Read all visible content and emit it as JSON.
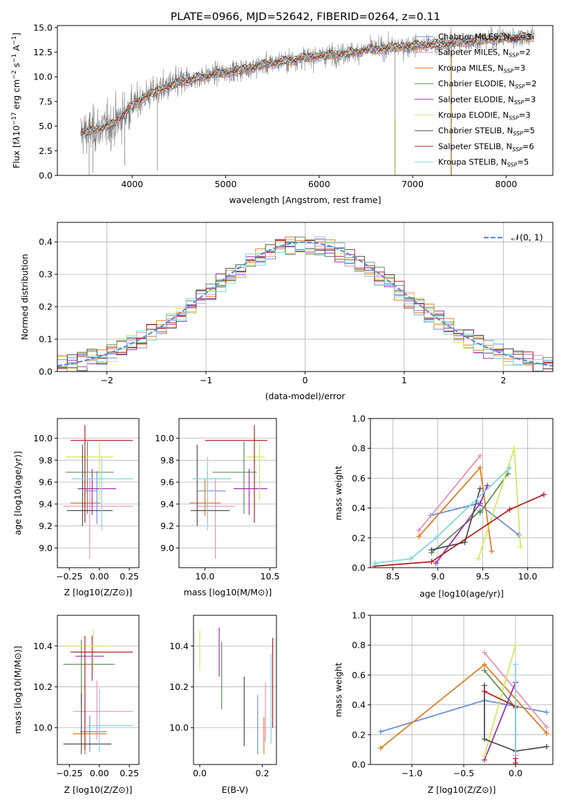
{
  "title": "PLATE=0966, MJD=52642, FIBERID=0264, z=0.11",
  "colors": {
    "chabrier_miles": "#6a8cd6",
    "salpeter_miles": "#e88fb6",
    "kroupa_miles": "#e07b1a",
    "chabrier_elodie": "#5b8a5b",
    "salpeter_elodie": "#9a2fae",
    "kroupa_elodie": "#d4e85a",
    "chabrier_stelib": "#4d4d4d",
    "salpeter_stelib": "#b21f1f",
    "kroupa_stelib": "#7fd6e0",
    "data": "#7f7f7f",
    "normal": "#5b8ed6",
    "grid": "#b0b0b0"
  },
  "chart_data": [
    {
      "id": "spectrum",
      "type": "line",
      "xlabel": "wavelength [Angstrom, rest frame]",
      "ylabel_parts": [
        "Flux [f",
        "λ",
        "10",
        "−17",
        " erg cm",
        "−2",
        " s",
        "−1",
        " A",
        "−1",
        "]"
      ],
      "xlim": [
        3200,
        8500
      ],
      "ylim": [
        0,
        15.2
      ],
      "xticks": [
        4000,
        5000,
        6000,
        7000,
        8000
      ],
      "yticks": [
        0.0,
        2.5,
        5.0,
        7.5,
        10.0,
        12.5,
        15.0
      ],
      "ytick_labels": [
        "0.0",
        "2.5",
        "5.0",
        "7.5",
        "10.0",
        "12.5",
        "15.0"
      ],
      "legend_position": "right",
      "legend": [
        {
          "label": "Chabrier MILES, N",
          "nssp": "3",
          "key": "chabrier_miles"
        },
        {
          "label": "Salpeter MILES, N",
          "nssp": "2",
          "key": "salpeter_miles"
        },
        {
          "label": "Kroupa MILES, N",
          "nssp": "3",
          "key": "kroupa_miles"
        },
        {
          "label": "Chabrier ELODIE, N",
          "nssp": "2",
          "key": "chabrier_elodie"
        },
        {
          "label": "Salpeter ELODIE, N",
          "nssp": "3",
          "key": "salpeter_elodie"
        },
        {
          "label": "Kroupa ELODIE, N",
          "nssp": "3",
          "key": "kroupa_elodie"
        },
        {
          "label": "Chabrier STELIB, N",
          "nssp": "5",
          "key": "chabrier_stelib"
        },
        {
          "label": "Salpeter STELIB, N",
          "nssp": "6",
          "key": "salpeter_stelib"
        },
        {
          "label": "Kroupa STELIB, N",
          "nssp": "5",
          "key": "kroupa_stelib"
        }
      ],
      "legend_sub": "SSP",
      "continuum": [
        [
          3450,
          4.3
        ],
        [
          3600,
          4.6
        ],
        [
          3800,
          5.2
        ],
        [
          3950,
          6.6
        ],
        [
          4100,
          7.8
        ],
        [
          4300,
          8.7
        ],
        [
          4500,
          9.4
        ],
        [
          4700,
          9.9
        ],
        [
          4900,
          10.3
        ],
        [
          5100,
          10.6
        ],
        [
          5300,
          11.0
        ],
        [
          5500,
          11.4
        ],
        [
          5700,
          11.7
        ],
        [
          5900,
          12.0
        ],
        [
          6100,
          12.2
        ],
        [
          6300,
          12.4
        ],
        [
          6500,
          12.7
        ],
        [
          6700,
          12.9
        ],
        [
          6900,
          13.1
        ],
        [
          7100,
          13.2
        ],
        [
          7300,
          13.3
        ],
        [
          7500,
          13.5
        ],
        [
          7700,
          13.7
        ],
        [
          7900,
          13.9
        ],
        [
          8100,
          14.0
        ],
        [
          8300,
          14.1
        ]
      ]
    },
    {
      "id": "residuals",
      "type": "histogram",
      "xlabel": "(data-model)/error",
      "ylabel": "Normed distribution",
      "xlim": [
        -2.5,
        2.5
      ],
      "ylim": [
        0,
        0.46
      ],
      "xticks": [
        -2,
        -1,
        0,
        1,
        2
      ],
      "xtick_labels": [
        "−2",
        "−1",
        "0",
        "1",
        "2"
      ],
      "yticks": [
        0.0,
        0.1,
        0.2,
        0.3,
        0.4
      ],
      "ytick_labels": [
        "0.0",
        "0.1",
        "0.2",
        "0.3",
        "0.4"
      ],
      "bin_width": 0.1,
      "legend_label": "𝒩(0, 1)",
      "legend_position": "upper right"
    },
    {
      "id": "age_z",
      "type": "scatter",
      "xlabel": "Z [log10(Z/Z⊙)]",
      "ylabel": "age  [log10(age/yr)]",
      "xlim": [
        -0.35,
        0.33
      ],
      "ylim": [
        8.82,
        10.18
      ],
      "xticks": [
        -0.25,
        0.0,
        0.25
      ],
      "xtick_labels": [
        "−0.25",
        "0.00",
        "0.25"
      ],
      "yticks": [
        9.0,
        9.2,
        9.4,
        9.6,
        9.8,
        10.0
      ],
      "ytick_labels": [
        "9.0",
        "9.2",
        "9.4",
        "9.6",
        "9.8",
        "10.0"
      ],
      "points": [
        {
          "key": "chabrier_miles",
          "x": -0.02,
          "y": 9.52,
          "xerr": [
            0.1,
            0.0
          ],
          "yerr": [
            0.3,
            0.18
          ]
        },
        {
          "key": "salpeter_miles",
          "x": -0.08,
          "y": 9.38,
          "xerr": [
            0.22,
            0.36
          ],
          "yerr": [
            0.48,
            0.25
          ]
        },
        {
          "key": "kroupa_miles",
          "x": -0.12,
          "y": 9.41,
          "xerr": [
            0.12,
            0.13
          ],
          "yerr": [
            0.12,
            0.22
          ]
        },
        {
          "key": "chabrier_elodie",
          "x": -0.1,
          "y": 9.69,
          "xerr": [
            0.18,
            0.22
          ],
          "yerr": [
            0.38,
            0.28
          ]
        },
        {
          "key": "salpeter_elodie",
          "x": -0.06,
          "y": 9.54,
          "xerr": [
            0.12,
            0.2
          ],
          "yerr": [
            0.24,
            0.18
          ]
        },
        {
          "key": "kroupa_elodie",
          "x": 0.0,
          "y": 9.83,
          "xerr": [
            0.28,
            0.12
          ],
          "yerr": [
            0.4,
            0.13
          ]
        },
        {
          "key": "chabrier_stelib",
          "x": -0.14,
          "y": 9.34,
          "xerr": [
            0.13,
            0.25
          ],
          "yerr": [
            0.14,
            0.6
          ]
        },
        {
          "key": "salpeter_stelib",
          "x": -0.12,
          "y": 9.98,
          "xerr": [
            0.12,
            0.4
          ],
          "yerr": [
            0.75,
            0.14
          ]
        },
        {
          "key": "kroupa_stelib",
          "x": 0.02,
          "y": 9.63,
          "xerr": [
            0.25,
            0.26
          ],
          "yerr": [
            0.47,
            0.2
          ]
        }
      ]
    },
    {
      "id": "age_mass",
      "type": "scatter",
      "xlabel": "mass [log10(M/M⊙)]",
      "ylabel": "",
      "xlim": [
        9.8,
        10.55
      ],
      "ylim": [
        8.82,
        10.18
      ],
      "xticks": [
        10.0,
        10.5
      ],
      "xtick_labels": [
        "10.0",
        "10.5"
      ],
      "yticks": [
        9.0,
        9.2,
        9.4,
        9.6,
        9.8,
        10.0
      ],
      "ytick_labels": [
        "9.0",
        "9.2",
        "9.4",
        "9.6",
        "9.8",
        "10.0"
      ],
      "points": [
        {
          "key": "chabrier_miles",
          "x": 10.02,
          "y": 9.52,
          "xerr": [
            0.08,
            0.14
          ],
          "yerr": [
            0.3,
            0.18
          ]
        },
        {
          "key": "salpeter_miles",
          "x": 10.08,
          "y": 9.38,
          "xerr": [
            0.14,
            0.15
          ],
          "yerr": [
            0.48,
            0.25
          ]
        },
        {
          "key": "kroupa_miles",
          "x": 10.0,
          "y": 9.41,
          "xerr": [
            0.12,
            0.12
          ],
          "yerr": [
            0.12,
            0.22
          ]
        },
        {
          "key": "chabrier_elodie",
          "x": 10.3,
          "y": 9.69,
          "xerr": [
            0.24,
            0.1
          ],
          "yerr": [
            0.38,
            0.28
          ]
        },
        {
          "key": "salpeter_elodie",
          "x": 10.34,
          "y": 9.54,
          "xerr": [
            0.12,
            0.14
          ],
          "yerr": [
            0.24,
            0.18
          ]
        },
        {
          "key": "kroupa_elodie",
          "x": 10.42,
          "y": 9.83,
          "xerr": [
            0.1,
            0.04
          ],
          "yerr": [
            0.4,
            0.13
          ]
        },
        {
          "key": "chabrier_stelib",
          "x": 9.94,
          "y": 9.34,
          "xerr": [
            0.05,
            0.25
          ],
          "yerr": [
            0.14,
            0.6
          ]
        },
        {
          "key": "salpeter_stelib",
          "x": 10.38,
          "y": 9.98,
          "xerr": [
            0.38,
            0.1
          ],
          "yerr": [
            0.75,
            0.14
          ]
        },
        {
          "key": "kroupa_stelib",
          "x": 10.02,
          "y": 9.63,
          "xerr": [
            0.12,
            0.18
          ],
          "yerr": [
            0.47,
            0.2
          ]
        }
      ]
    },
    {
      "id": "weight_age",
      "type": "line",
      "xlabel": "age  [log10(age/yr)]",
      "ylabel": "mass weight",
      "xlim": [
        8.25,
        10.28
      ],
      "ylim": [
        0,
        1.0
      ],
      "xticks": [
        8.5,
        9.0,
        9.5,
        10.0
      ],
      "xtick_labels": [
        "8.5",
        "9.0",
        "9.5",
        "10.0"
      ],
      "yticks": [
        0.0,
        0.2,
        0.4,
        0.6,
        0.8,
        1.0
      ],
      "ytick_labels": [
        "0.0",
        "0.2",
        "0.4",
        "0.6",
        "0.8",
        "1.0"
      ],
      "series": [
        {
          "key": "chabrier_miles",
          "x": [
            8.92,
            9.45,
            9.9
          ],
          "y": [
            0.35,
            0.43,
            0.22
          ]
        },
        {
          "key": "salpeter_miles",
          "x": [
            8.79,
            9.47
          ],
          "y": [
            0.25,
            0.75
          ]
        },
        {
          "key": "kroupa_miles",
          "x": [
            8.79,
            9.47,
            9.6
          ],
          "y": [
            0.21,
            0.67,
            0.11
          ]
        },
        {
          "key": "chabrier_elodie",
          "x": [
            8.93,
            9.47
          ],
          "y": [
            0.1,
            0.38
          ]
        },
        {
          "key": "chabrier_elodie",
          "x": [
            9.47,
            9.78
          ],
          "y": [
            0.37,
            0.63
          ]
        },
        {
          "key": "salpeter_elodie",
          "x": [
            8.98,
            9.47,
            9.55
          ],
          "y": [
            0.03,
            0.43,
            0.55
          ]
        },
        {
          "key": "kroupa_elodie",
          "x": [
            9.45,
            9.85,
            9.92
          ],
          "y": [
            0.06,
            0.8,
            0.14
          ]
        },
        {
          "key": "chabrier_stelib",
          "x": [
            8.93,
            9.3,
            9.47
          ],
          "y": [
            0.12,
            0.17,
            0.53
          ]
        },
        {
          "key": "salpeter_stelib",
          "x": [
            8.3,
            8.93,
            9.8,
            10.18
          ],
          "y": [
            0.01,
            0.04,
            0.39,
            0.49
          ]
        },
        {
          "key": "kroupa_stelib",
          "x": [
            8.3,
            8.7,
            8.98,
            9.8
          ],
          "y": [
            0.03,
            0.06,
            0.2,
            0.67
          ]
        }
      ]
    },
    {
      "id": "mass_z",
      "type": "scatter",
      "xlabel": "Z [log10(Z/Z⊙)]",
      "ylabel": "mass [log10(M/M⊙)]",
      "xlim": [
        -0.35,
        0.33
      ],
      "ylim": [
        9.82,
        10.55
      ],
      "xticks": [
        -0.25,
        0.0,
        0.25
      ],
      "xtick_labels": [
        "−0.25",
        "0.00",
        "0.25"
      ],
      "yticks": [
        10.0,
        10.2,
        10.4
      ],
      "ytick_labels": [
        "10.0",
        "10.2",
        "10.4"
      ],
      "points": [
        {
          "key": "chabrier_miles",
          "x": -0.08,
          "y": 9.98,
          "xerr": [
            0.08,
            0.14
          ],
          "yerr": [
            0.1,
            0.08
          ]
        },
        {
          "key": "salpeter_miles",
          "x": -0.02,
          "y": 10.08,
          "xerr": [
            0.2,
            0.3
          ],
          "yerr": [
            0.14,
            0.15
          ]
        },
        {
          "key": "kroupa_miles",
          "x": -0.12,
          "y": 9.97,
          "xerr": [
            0.1,
            0.18
          ],
          "yerr": [
            0.1,
            0.15
          ]
        },
        {
          "key": "chabrier_elodie",
          "x": -0.15,
          "y": 10.31,
          "xerr": [
            0.15,
            0.28
          ],
          "yerr": [
            0.2,
            0.12
          ]
        },
        {
          "key": "salpeter_elodie",
          "x": -0.06,
          "y": 10.35,
          "xerr": [
            0.14,
            0.1
          ],
          "yerr": [
            0.12,
            0.1
          ]
        },
        {
          "key": "kroupa_elodie",
          "x": -0.05,
          "y": 10.4,
          "xerr": [
            0.24,
            0.15
          ],
          "yerr": [
            0.14,
            0.08
          ]
        },
        {
          "key": "chabrier_stelib",
          "x": -0.15,
          "y": 9.92,
          "xerr": [
            0.15,
            0.25
          ],
          "yerr": [
            0.05,
            0.25
          ]
        },
        {
          "key": "salpeter_stelib",
          "x": -0.12,
          "y": 10.37,
          "xerr": [
            0.12,
            0.4
          ],
          "yerr": [
            0.48,
            0.08
          ]
        },
        {
          "key": "kroupa_stelib",
          "x": 0.0,
          "y": 10.01,
          "xerr": [
            0.1,
            0.28
          ],
          "yerr": [
            0.13,
            0.18
          ]
        }
      ]
    },
    {
      "id": "mass_ebv",
      "type": "scatter",
      "xlabel": "E(B-V)",
      "ylabel": "",
      "xlim": [
        -0.02,
        0.245
      ],
      "ylim": [
        9.82,
        10.55
      ],
      "xticks": [
        0.0,
        0.2
      ],
      "xtick_labels": [
        "0.0",
        "0.2"
      ],
      "yticks": [
        10.0,
        10.2,
        10.4
      ],
      "ytick_labels": [
        "10.0",
        "10.2",
        "10.4"
      ],
      "points": [
        {
          "key": "chabrier_miles",
          "x": 0.185,
          "y": 10.02,
          "yerr": [
            0.15,
            0.14
          ]
        },
        {
          "key": "salpeter_miles",
          "x": 0.21,
          "y": 10.08,
          "yerr": [
            0.15,
            0.14
          ]
        },
        {
          "key": "kroupa_miles",
          "x": 0.205,
          "y": 9.97,
          "yerr": [
            0.1,
            0.08
          ]
        },
        {
          "key": "chabrier_elodie",
          "x": 0.07,
          "y": 10.31,
          "yerr": [
            0.22,
            0.11
          ]
        },
        {
          "key": "salpeter_elodie",
          "x": 0.062,
          "y": 10.36,
          "yerr": [
            0.11,
            0.13
          ]
        },
        {
          "key": "kroupa_elodie",
          "x": 0.0,
          "y": 10.4,
          "yerr": [
            0.12,
            0.08
          ]
        },
        {
          "key": "chabrier_stelib",
          "x": 0.142,
          "y": 10.05,
          "yerr": [
            0.14,
            0.2
          ]
        },
        {
          "key": "salpeter_stelib",
          "x": 0.233,
          "y": 10.2,
          "yerr": [
            0.2,
            0.24
          ]
        },
        {
          "key": "kroupa_stelib",
          "x": 0.228,
          "y": 10.07,
          "yerr": [
            0.15,
            0.29
          ]
        }
      ]
    },
    {
      "id": "weight_z",
      "type": "line",
      "xlabel": "Z [log10(Z/Z⊙)]",
      "ylabel": "mass weight",
      "xlim": [
        -1.4,
        0.36
      ],
      "ylim": [
        0,
        1.0
      ],
      "xticks": [
        -1.0,
        -0.5,
        0.0
      ],
      "xtick_labels": [
        "−1.0",
        "−0.5",
        "0.0"
      ],
      "yticks": [
        0.0,
        0.2,
        0.4,
        0.6,
        0.8,
        1.0
      ],
      "ytick_labels": [
        "0.0",
        "0.2",
        "0.4",
        "0.6",
        "0.8",
        "1.0"
      ],
      "series": [
        {
          "key": "chabrier_miles",
          "x": [
            -1.3,
            -0.3,
            0.3
          ],
          "y": [
            0.22,
            0.43,
            0.35
          ]
        },
        {
          "key": "salpeter_miles",
          "x": [
            -0.3,
            0.3
          ],
          "y": [
            0.75,
            0.25
          ]
        },
        {
          "key": "kroupa_miles",
          "x": [
            -1.3,
            -0.3,
            0.3
          ],
          "y": [
            0.11,
            0.67,
            0.21
          ]
        },
        {
          "key": "chabrier_elodie",
          "x": [
            -0.3,
            0.0
          ],
          "y": [
            0.63,
            0.38
          ]
        },
        {
          "key": "salpeter_elodie",
          "x": [
            -0.3,
            0.0
          ],
          "y": [
            0.03,
            0.55
          ]
        },
        {
          "key": "kroupa_elodie",
          "x": [
            -0.3,
            0.0
          ],
          "y": [
            0.06,
            0.8
          ]
        },
        {
          "key": "chabrier_stelib",
          "x": [
            -0.3,
            -0.3,
            0.0,
            0.3
          ],
          "y": [
            0.53,
            0.17,
            0.09,
            0.12
          ]
        },
        {
          "key": "salpeter_stelib",
          "x": [
            -0.3,
            0.0,
            0.0,
            0.0
          ],
          "y": [
            0.49,
            0.39,
            0.04,
            0.01
          ]
        },
        {
          "key": "kroupa_stelib",
          "x": [
            0.0,
            0.0,
            0.0
          ],
          "y": [
            0.67,
            0.06,
            0.2
          ]
        }
      ]
    }
  ]
}
